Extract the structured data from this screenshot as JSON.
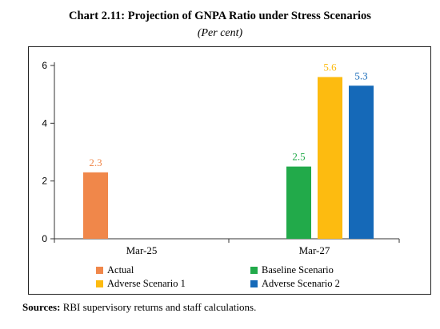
{
  "header": {
    "title": "Chart 2.11: Projection of GNPA Ratio under Stress Scenarios",
    "subtitle": "(Per cent)"
  },
  "source": {
    "label": "Sources:",
    "text": "RBI supervisory returns and staff calculations."
  },
  "colors": {
    "Actual": "#f0874a",
    "Baseline Scenario": "#22aa4a",
    "Adverse Scenario 1": "#fdbb10",
    "Adverse Scenario 2": "#1569b8"
  },
  "chart_data": {
    "type": "bar",
    "categories": [
      "Mar-25",
      "Mar-27"
    ],
    "series": [
      {
        "name": "Actual",
        "values": [
          2.3,
          null
        ]
      },
      {
        "name": "Baseline Scenario",
        "values": [
          null,
          2.5
        ]
      },
      {
        "name": "Adverse Scenario 1",
        "values": [
          null,
          5.6
        ]
      },
      {
        "name": "Adverse Scenario 2",
        "values": [
          null,
          5.3
        ]
      }
    ],
    "data_labels": [
      "2.3",
      "2.5",
      "5.6",
      "5.3"
    ],
    "yticks": [
      "0",
      "2",
      "4",
      "6"
    ],
    "ylim": [
      0,
      6.2
    ],
    "grid": false,
    "legend_position": "bottom"
  }
}
